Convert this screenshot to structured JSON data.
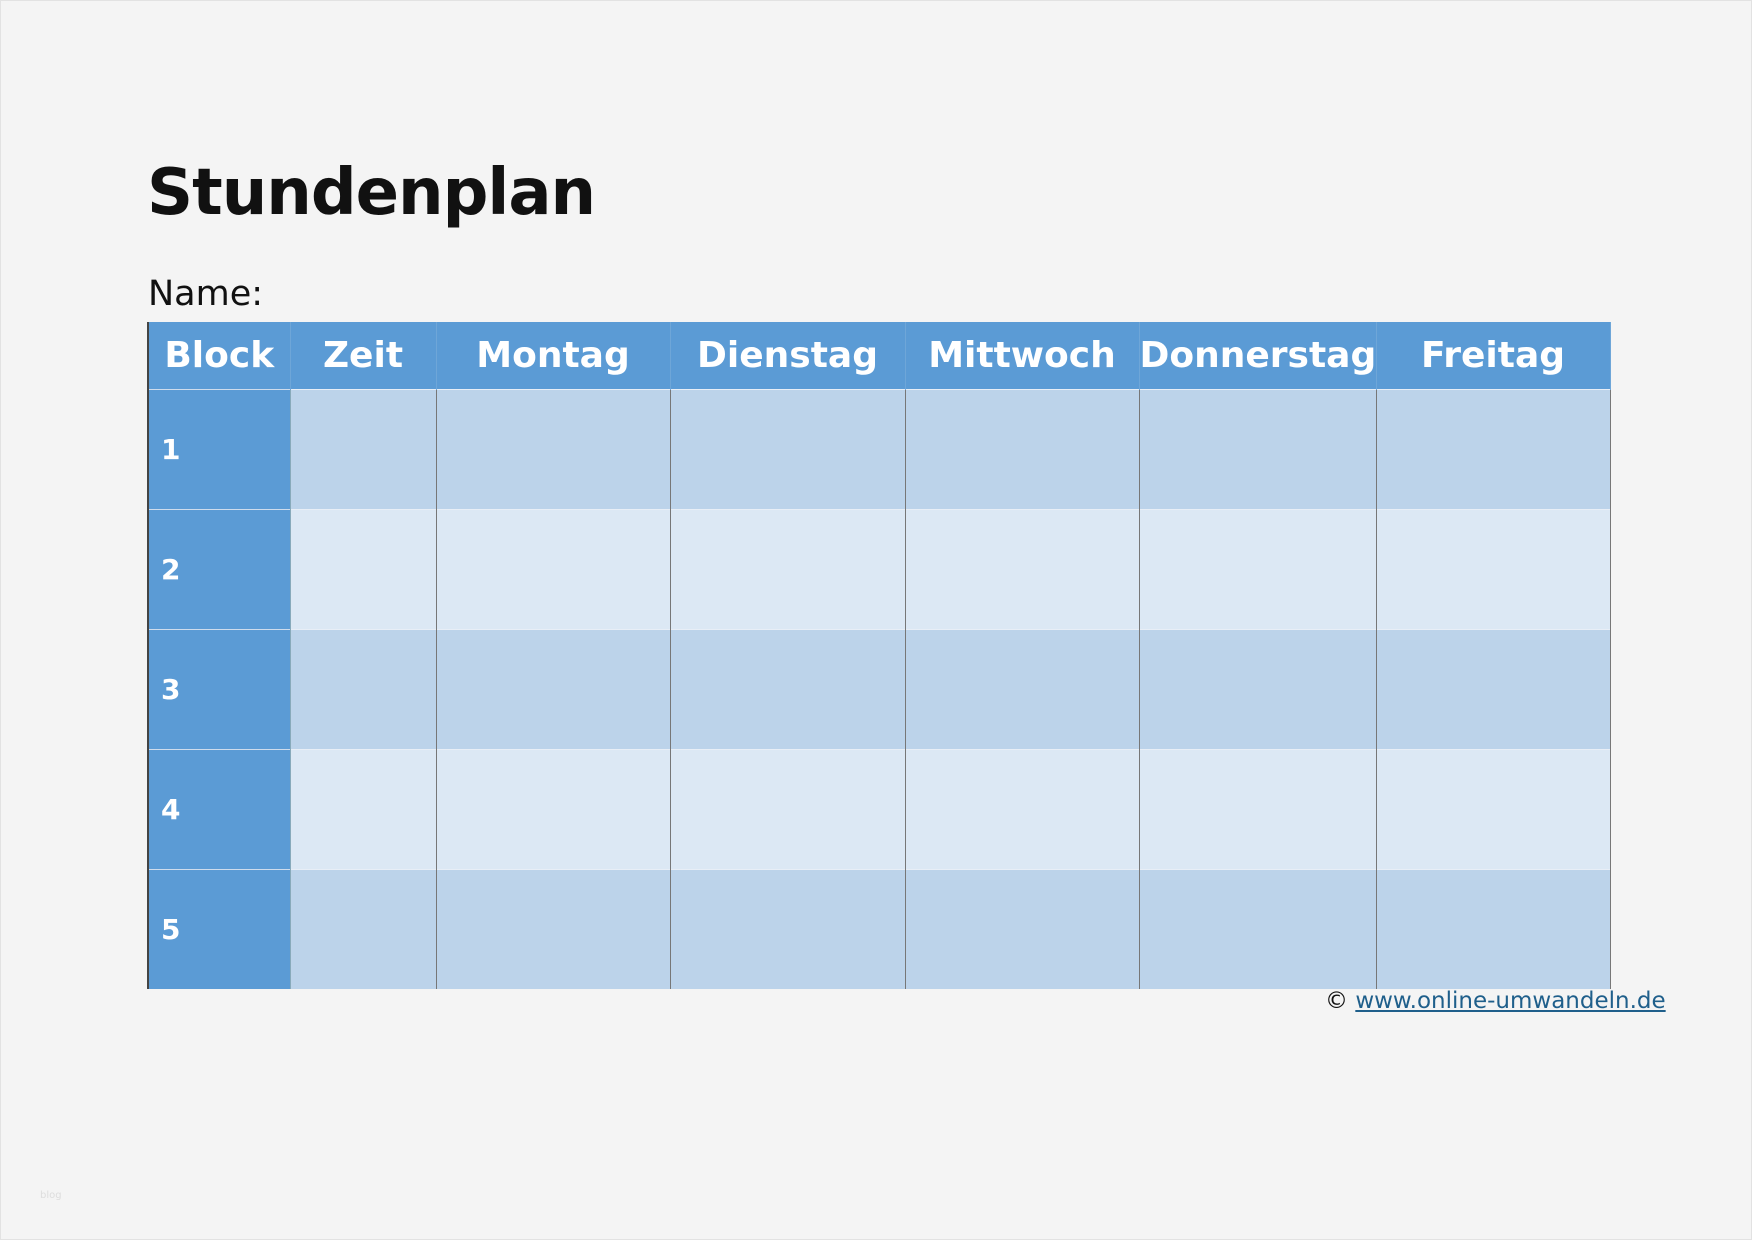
{
  "title": "Stundenplan",
  "name_label": "Name:",
  "table": {
    "headers": [
      "Block",
      "Zeit",
      "Montag",
      "Dienstag",
      "Mittwoch",
      "Donnerstag",
      "Freitag"
    ],
    "rows": [
      "1",
      "2",
      "3",
      "4",
      "5"
    ]
  },
  "footer": {
    "copyright": "©",
    "link": "www.online-umwandeln.de"
  },
  "watermark": "blog",
  "colors": {
    "header": "#5b9bd5",
    "row_dark": "#bcd3ea",
    "row_light": "#dce8f4"
  }
}
